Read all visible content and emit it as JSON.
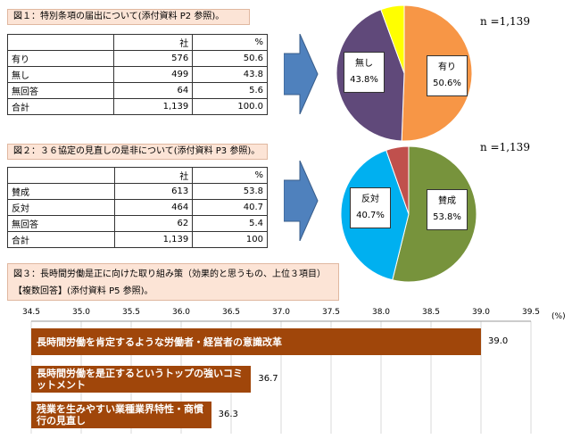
{
  "fig1": {
    "caption": "図１：特別条項の届出について(添付資料 P2 参照)。",
    "header": [
      "",
      "社",
      "%"
    ],
    "rows": [
      {
        "label": "有り",
        "count": "576",
        "pct": "50.6"
      },
      {
        "label": "無し",
        "count": "499",
        "pct": "43.8"
      },
      {
        "label": "無回答",
        "count": "64",
        "pct": "5.6"
      },
      {
        "label": "合計",
        "count": "1,139",
        "pct": "100.0"
      }
    ],
    "n_label": "n =1,139",
    "pie": {
      "slices": [
        {
          "name": "有り",
          "value": 50.6,
          "color": "#f79646"
        },
        {
          "name": "無し",
          "value": 43.8,
          "color": "#60497a"
        },
        {
          "name": "無回答",
          "value": 5.6,
          "color": "#ffff00"
        }
      ],
      "label_yes": "有り",
      "label_yes_pct": "50.6%",
      "label_no": "無し",
      "label_no_pct": "43.8%"
    }
  },
  "fig2": {
    "caption": "図２：３６協定の見直しの是非について(添付資料 P3 参照)。",
    "header": [
      "",
      "社",
      "%"
    ],
    "rows": [
      {
        "label": "賛成",
        "count": "613",
        "pct": "53.8"
      },
      {
        "label": "反対",
        "count": "464",
        "pct": "40.7"
      },
      {
        "label": "無回答",
        "count": "62",
        "pct": "5.4"
      },
      {
        "label": "合計",
        "count": "1,139",
        "pct": "100"
      }
    ],
    "n_label": "n =1,139",
    "pie": {
      "slices": [
        {
          "name": "賛成",
          "value": 53.8,
          "color": "#77933c"
        },
        {
          "name": "反対",
          "value": 40.7,
          "color": "#00b0f0"
        },
        {
          "name": "無回答",
          "value": 5.4,
          "color": "#c0504d"
        }
      ],
      "label_for": "賛成",
      "label_for_pct": "53.8%",
      "label_against": "反対",
      "label_against_pct": "40.7%"
    }
  },
  "fig3": {
    "caption_line1": "図３：長時間労働是正に向けた取り組み策（効果的と思うもの、上位３項目）",
    "caption_line2": "【複数回答】(添付資料 P5 参照)。"
  },
  "chart_data": {
    "type": "bar",
    "orientation": "horizontal",
    "unit": "(%)",
    "xlim": [
      34.5,
      39.5
    ],
    "ticks": [
      "34.5",
      "35.0",
      "35.5",
      "36.0",
      "36.5",
      "37.0",
      "37.5",
      "38.0",
      "38.5",
      "39.0",
      "39.5"
    ],
    "categories": [
      "長時間労働を肯定するような労働者・経営者の意識改革",
      "長時間労働を是正するというトップの強いコミットメント",
      "残業を生みやすい業種業界特性・商慣行の見直し"
    ],
    "values": [
      39.0,
      36.7,
      36.3
    ],
    "value_labels": [
      "39.0",
      "36.7",
      "36.3"
    ],
    "color": "#a0460a"
  }
}
